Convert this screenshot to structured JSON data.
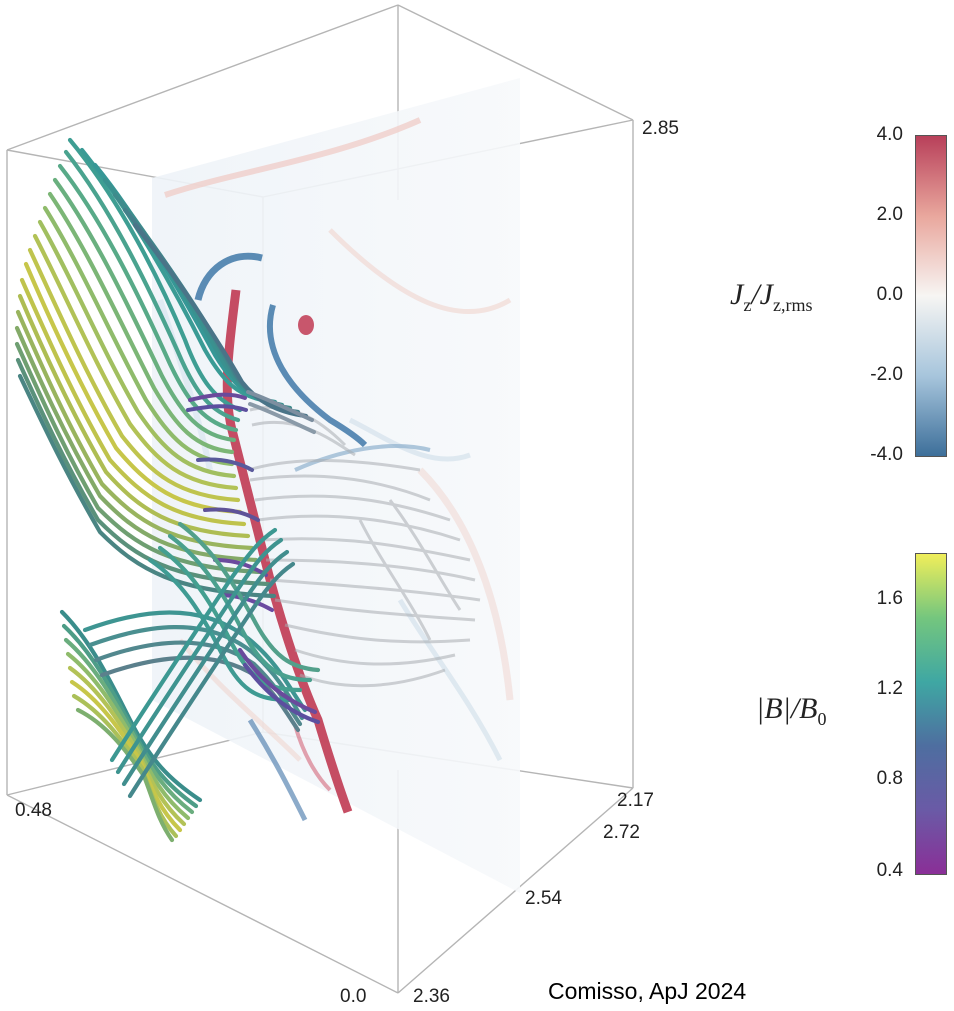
{
  "axes": {
    "ticks": [
      "2.85",
      "0.48",
      "0.0",
      "2.36",
      "2.54",
      "2.72",
      "2.17"
    ]
  },
  "colorbar_jz": {
    "label_main": "J",
    "label_sub1": "z",
    "label_mid": "/J",
    "label_sub2": "z,rms",
    "ticks": [
      "4.0",
      "2.0",
      "0.0",
      "-2.0",
      "-4.0"
    ],
    "colors": [
      "#b8405a",
      "#e9a79d",
      "#f7f5f3",
      "#a7c5dc",
      "#3d6f9a"
    ]
  },
  "colorbar_b": {
    "label_main": "|B|/B",
    "label_sub": "0",
    "ticks": [
      "1.6",
      "1.2",
      "0.8",
      "0.4"
    ],
    "colors": [
      "#f0ee5a",
      "#74c67e",
      "#3fa7a3",
      "#4e6ea0",
      "#6a5aa6",
      "#8a2f97"
    ]
  },
  "credit": "Comisso, ApJ 2024",
  "icons": [
    "magnetic-field-lines",
    "current-sheet-slice"
  ]
}
